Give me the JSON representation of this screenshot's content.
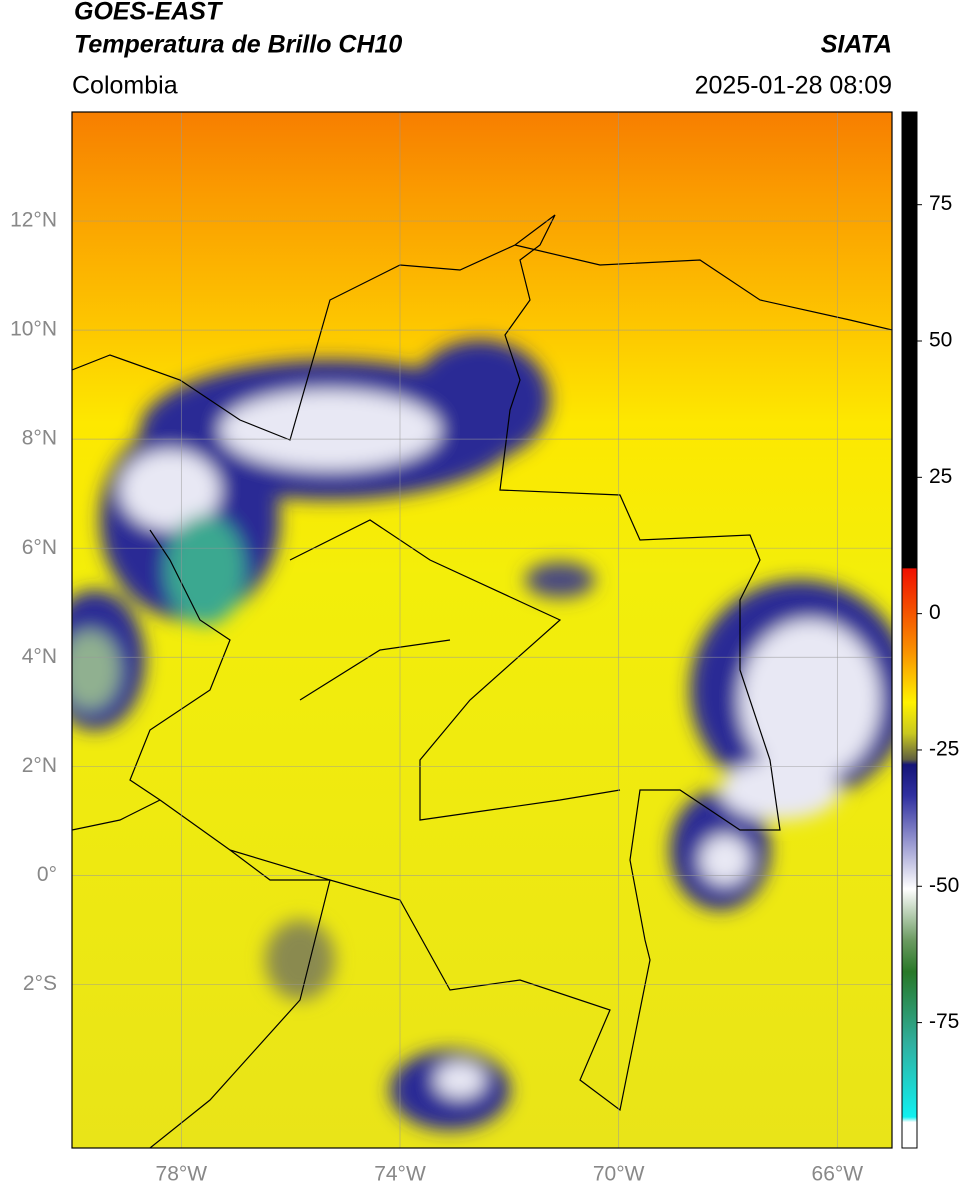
{
  "header": {
    "title": "GOES-EAST",
    "subtitle": "Temperatura de Brillo CH10",
    "agency": "SIATA",
    "region": "Colombia",
    "datetime": "2025-01-28 08:09"
  },
  "map": {
    "xlim": [
      -80,
      -65
    ],
    "ylim": [
      -5,
      14
    ],
    "xticks": [
      {
        "value": -78,
        "label": "78°W"
      },
      {
        "value": -74,
        "label": "74°W"
      },
      {
        "value": -70,
        "label": "70°W"
      },
      {
        "value": -66,
        "label": "66°W"
      }
    ],
    "yticks": [
      {
        "value": 12,
        "label": "12°N"
      },
      {
        "value": 10,
        "label": "10°N"
      },
      {
        "value": 8,
        "label": "8°N"
      },
      {
        "value": 6,
        "label": "6°N"
      },
      {
        "value": 4,
        "label": "4°N"
      },
      {
        "value": 2,
        "label": "2°N"
      },
      {
        "value": 0,
        "label": "0°"
      },
      {
        "value": -2,
        "label": "2°S"
      }
    ],
    "grid": true
  },
  "colorbar": {
    "lim": [
      -98,
      92
    ],
    "ticks": [
      75,
      50,
      25,
      0,
      -25,
      -50,
      -75
    ]
  }
}
